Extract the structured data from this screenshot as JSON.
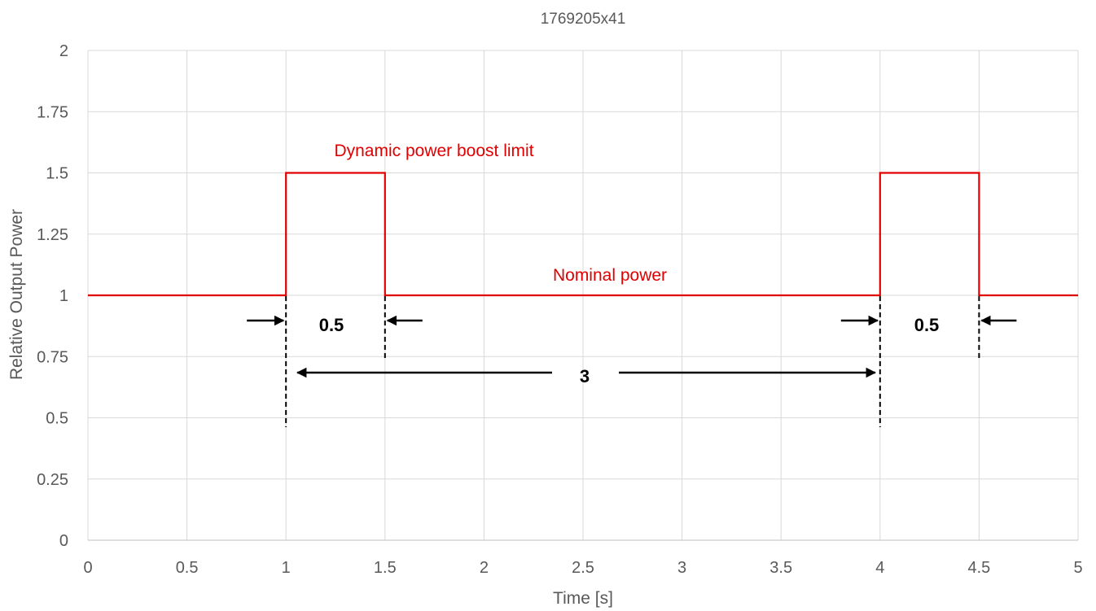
{
  "chart_data": {
    "type": "line",
    "title": "1769205x41",
    "xlabel": "Time [s]",
    "ylabel": "Relative Output Power",
    "xlim": [
      0,
      5
    ],
    "ylim": [
      0,
      2
    ],
    "x_ticks": [
      "0",
      "0.5",
      "1",
      "1.5",
      "2",
      "2.5",
      "3",
      "3.5",
      "4",
      "4.5",
      "5"
    ],
    "y_ticks": [
      "0",
      "0.25",
      "0.5",
      "0.75",
      "1",
      "1.25",
      "1.5",
      "1.75",
      "2"
    ],
    "grid": true,
    "series": [
      {
        "color": "#e00000",
        "x": [
          0,
          1,
          1,
          1.5,
          1.5,
          4,
          4,
          4.5,
          4.5,
          5
        ],
        "y": [
          1,
          1,
          1.5,
          1.5,
          1,
          1,
          1.5,
          1.5,
          1,
          1
        ]
      }
    ],
    "annotations": {
      "boost_label": "Dynamic power boost limit",
      "nominal_label": "Nominal power",
      "pulse1_width": "0.5",
      "pulse2_width": "0.5",
      "period": "3"
    }
  }
}
